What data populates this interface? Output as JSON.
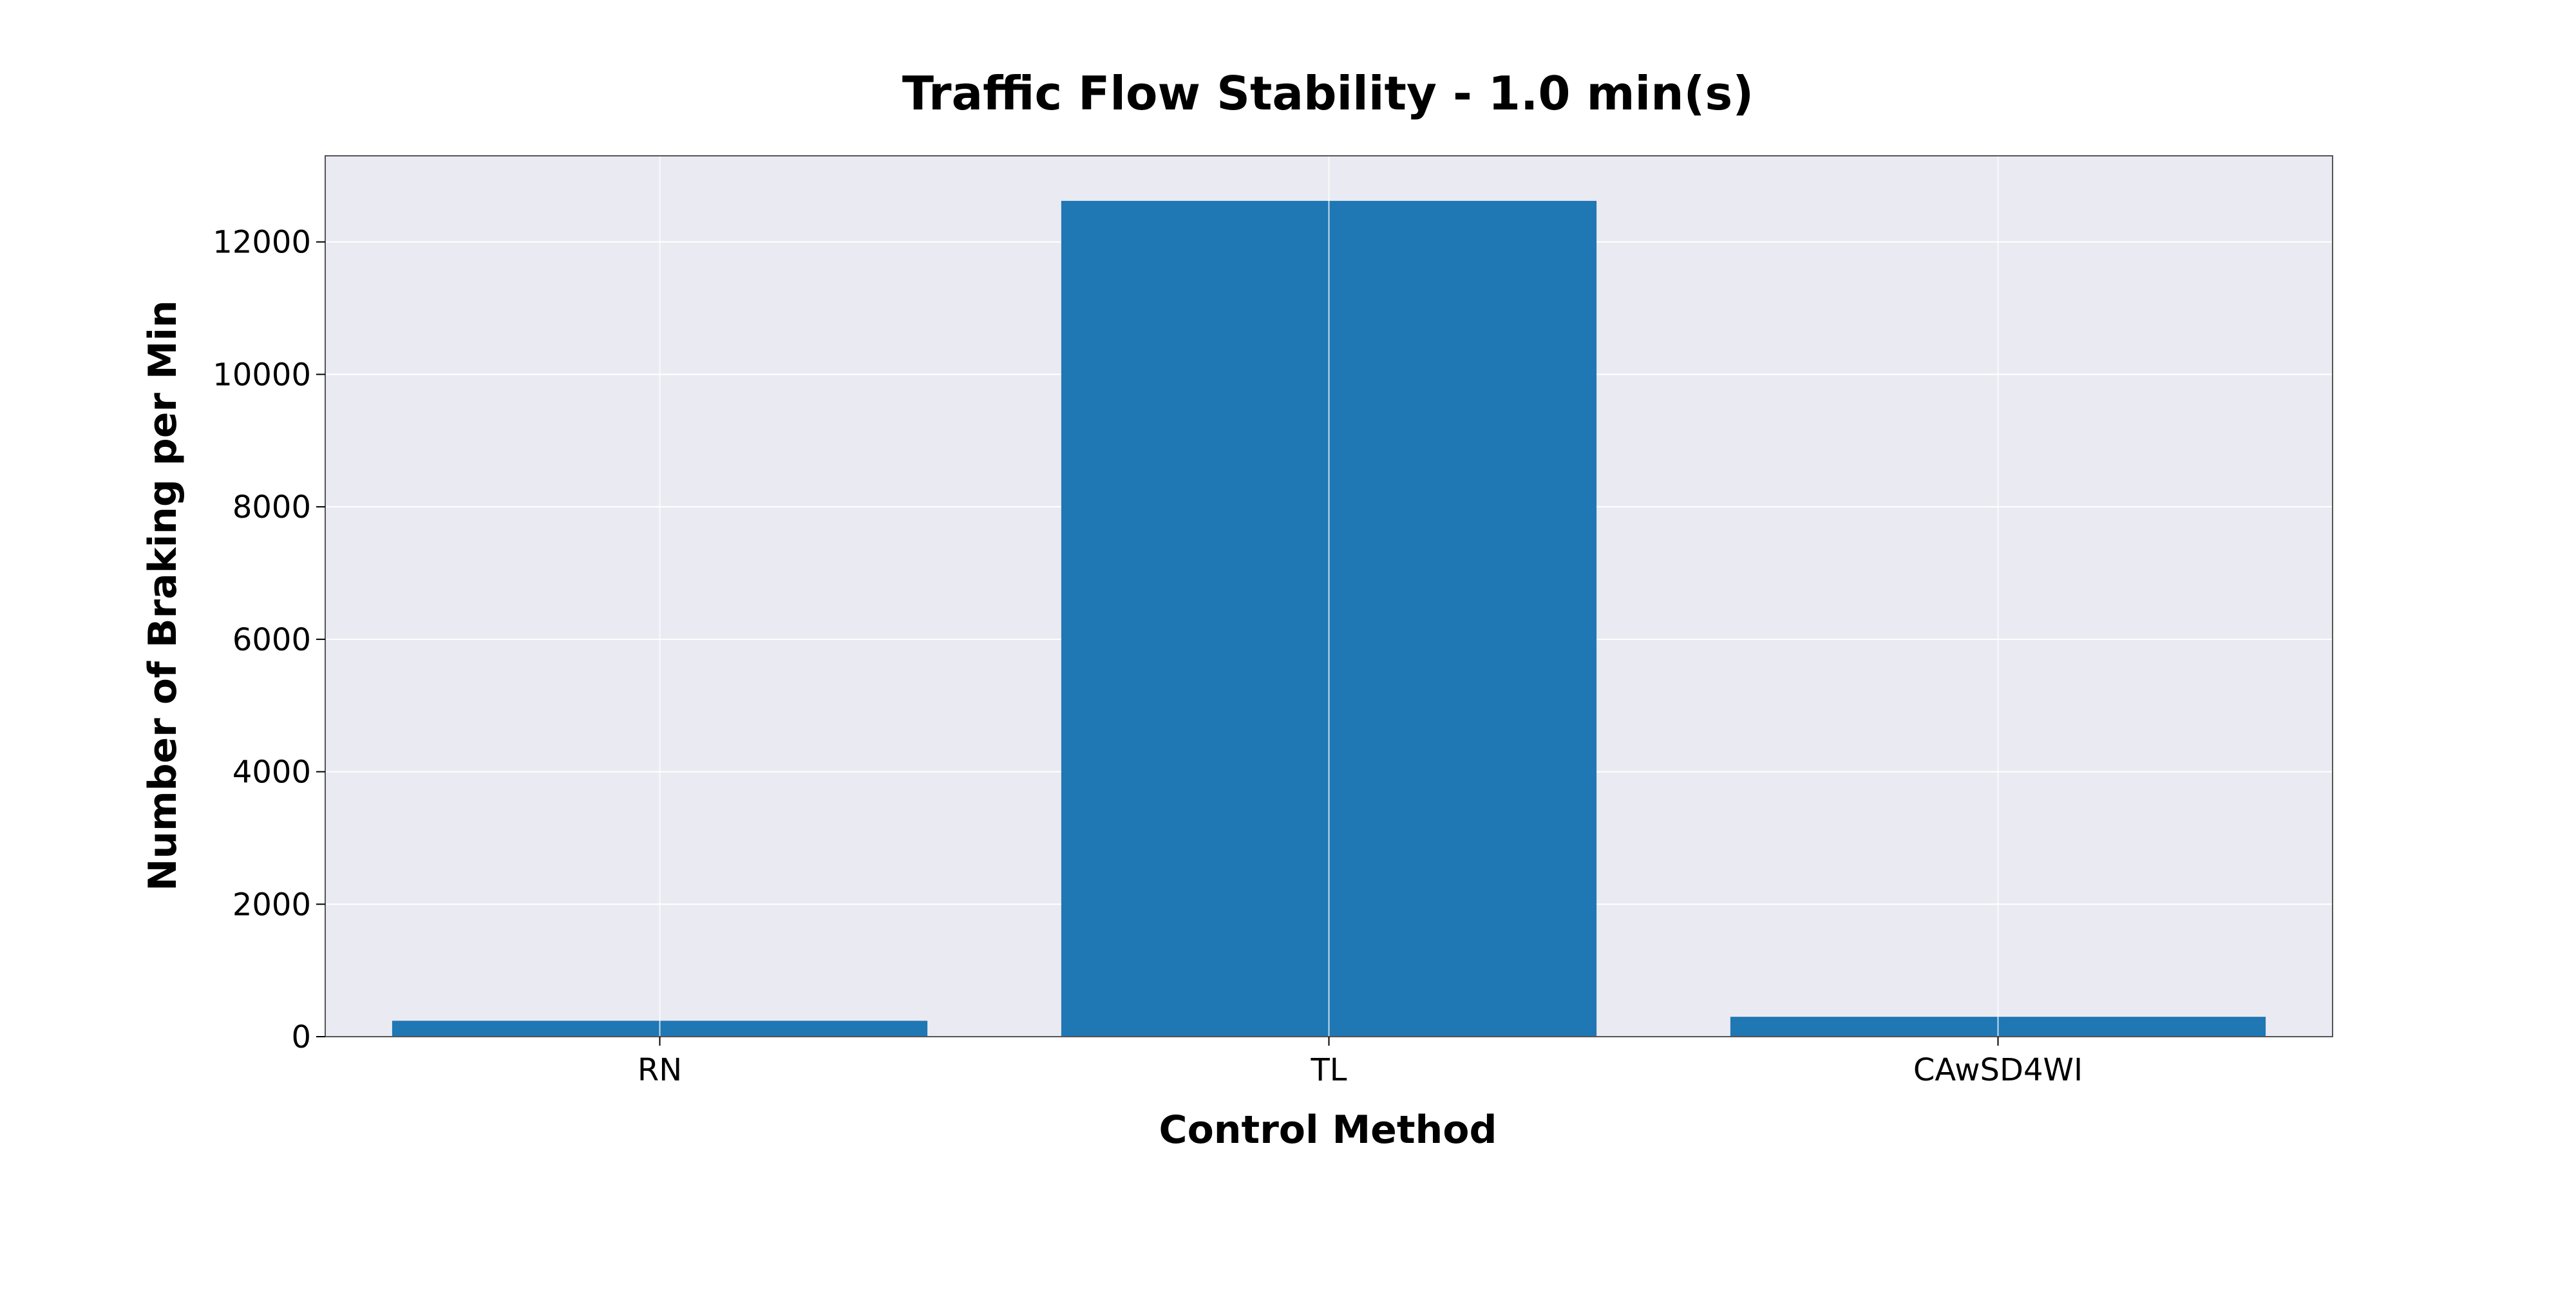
{
  "chart_data": {
    "type": "bar",
    "title": "Traffic Flow Stability - 1.0 min(s)",
    "xlabel": "Control Method",
    "ylabel": "Number of Braking per Min",
    "categories": [
      "RN",
      "TL",
      "CAwSD4WI"
    ],
    "values": [
      240,
      12620,
      300
    ],
    "ylim": [
      0,
      13300
    ],
    "yticks": [
      0,
      2000,
      4000,
      6000,
      8000,
      10000,
      12000
    ],
    "grid": true,
    "legend": "none"
  },
  "colors": {
    "bar": "#1f77b4",
    "plot_background": "#eaeaf2",
    "grid": "#ffffff",
    "frame": "#555555"
  }
}
